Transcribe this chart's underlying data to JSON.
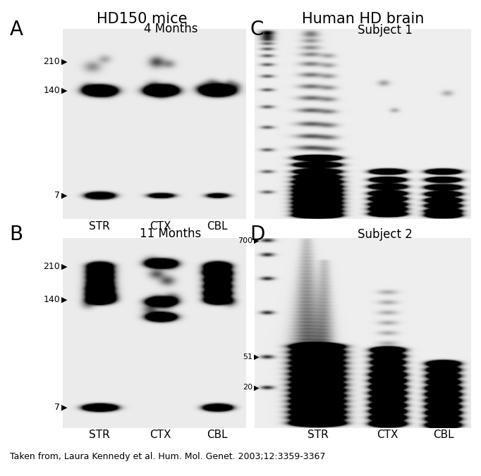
{
  "title_left": "HD150 mice",
  "title_right": "Human HD brain",
  "panel_A_label": "A",
  "panel_B_label": "B",
  "panel_C_label": "C",
  "panel_D_label": "D",
  "panel_A_subtitle": "4 Months",
  "panel_B_subtitle": "11 Months",
  "panel_C_subtitle": "Subject 1",
  "panel_D_subtitle": "Subject 2",
  "markers_AB": [
    "210",
    "140",
    "7"
  ],
  "markers_D": [
    "700",
    "51",
    "20"
  ],
  "x_labels_AB": [
    "STR",
    "CTX",
    "CBL"
  ],
  "x_labels_CD": [
    "STR",
    "CTX",
    "CBL"
  ],
  "citation": "Taken from, Laura Kennedy et al. Hum. Mol. Genet. 2003;12:3359-3367",
  "fig_bg": "#ffffff",
  "gel_bg": "#e8e8e8",
  "gel_bg2": "#efefef",
  "gel_bg3": "#f2f2f2"
}
